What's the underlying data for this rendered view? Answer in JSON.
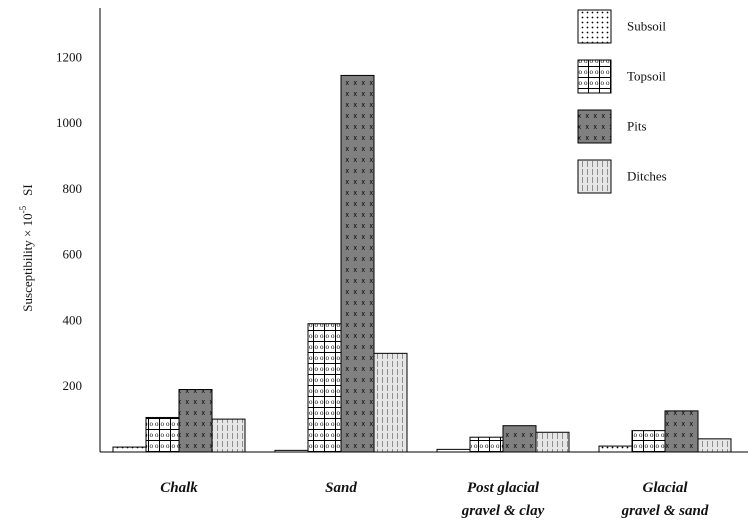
{
  "chart_data": {
    "type": "bar",
    "title": "",
    "xlabel": "",
    "ylabel": {
      "main": "Susceptibility × 10",
      "superscript": "-5",
      "unit": "SI"
    },
    "ylim": [
      0,
      1350
    ],
    "yticks": [
      "200",
      "400",
      "600",
      "800",
      "1000",
      "1200"
    ],
    "grid": false,
    "legend_position": "top-right",
    "categories": [
      [
        "Chalk"
      ],
      [
        "Sand"
      ],
      [
        "Post glacial",
        "gravel & clay"
      ],
      [
        "Glacial",
        "gravel & sand"
      ]
    ],
    "series": [
      {
        "name": "Subsoil",
        "pattern": "dots",
        "values": [
          15,
          5,
          8,
          18
        ]
      },
      {
        "name": "Topsoil",
        "pattern": "bricks",
        "values": [
          105,
          390,
          45,
          65
        ]
      },
      {
        "name": "Pits",
        "pattern": "crosses",
        "fill": "#808080",
        "values": [
          190,
          1145,
          80,
          125
        ]
      },
      {
        "name": "Ditches",
        "pattern": "vlines",
        "values": [
          100,
          300,
          60,
          40
        ]
      }
    ]
  }
}
